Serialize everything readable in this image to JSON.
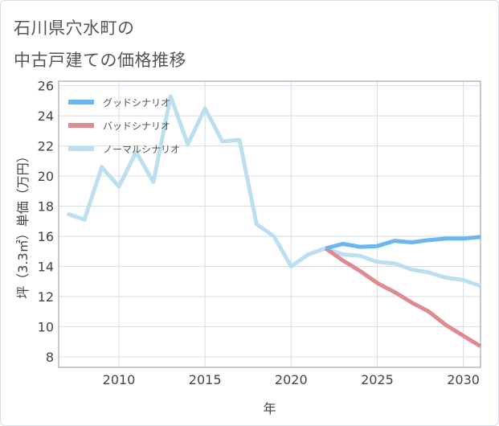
{
  "title_line1": "石川県穴水町の",
  "title_line2": "中古戸建ての価格推移",
  "chart_data": {
    "type": "line",
    "title": "石川県穴水町の中古戸建ての価格推移",
    "xlabel": "年",
    "ylabel": "坪（3.3㎡）単価（万円）",
    "xlim": [
      2006.5,
      2031
    ],
    "ylim": [
      7.3,
      26.3
    ],
    "x_ticks": [
      2010,
      2015,
      2020,
      2025,
      2030
    ],
    "y_ticks": [
      8,
      10,
      12,
      14,
      16,
      18,
      20,
      22,
      24,
      26
    ],
    "grid": true,
    "legend_position": "top-left",
    "series": [
      {
        "name": "グッドシナリオ",
        "color": "#6ab6ee",
        "x": [
          2022,
          2023,
          2024,
          2025,
          2026,
          2027,
          2028,
          2029,
          2030,
          2031
        ],
        "values": [
          15.2,
          15.5,
          15.3,
          15.35,
          15.7,
          15.6,
          15.75,
          15.85,
          15.85,
          15.95
        ]
      },
      {
        "name": "バッドシナリオ",
        "color": "#de8a91",
        "x": [
          2022,
          2023,
          2024,
          2025,
          2026,
          2027,
          2028,
          2029,
          2030,
          2031
        ],
        "values": [
          15.2,
          14.4,
          13.7,
          12.9,
          12.3,
          11.6,
          11.0,
          10.1,
          9.4,
          8.7
        ]
      },
      {
        "name": "ノーマルシナリオ",
        "color": "#bcdff0",
        "x": [
          2007,
          2008,
          2009,
          2010,
          2011,
          2012,
          2013,
          2014,
          2015,
          2016,
          2017,
          2018,
          2019,
          2020,
          2021,
          2022,
          2023,
          2024,
          2025,
          2026,
          2027,
          2028,
          2029,
          2030,
          2031
        ],
        "values": [
          17.5,
          17.1,
          20.6,
          19.3,
          21.6,
          19.6,
          25.3,
          22.1,
          24.5,
          22.3,
          22.4,
          16.8,
          16.0,
          14.0,
          14.8,
          15.2,
          14.8,
          14.7,
          14.3,
          14.2,
          13.8,
          13.6,
          13.25,
          13.1,
          12.7
        ]
      }
    ]
  }
}
